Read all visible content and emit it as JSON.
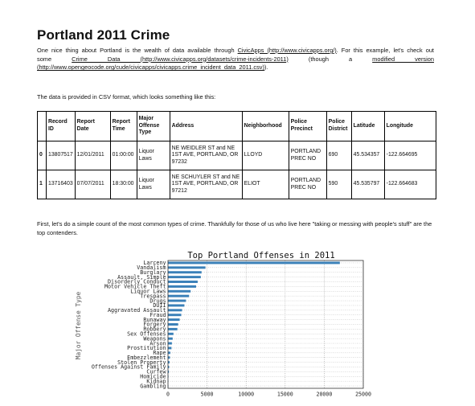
{
  "title": "Portland 2011 Crime",
  "intro": {
    "line1_prefix": "One nice thing about Portland is the wealth of data available through ",
    "line1_link": "CivicApps (http://www.civicapps.org/)",
    "line1_suffix": ". For this example, let's check out",
    "w_some": "some",
    "w_crime_link": "Crime Data (http://www.civicapps.org/datasets/crime-incidents-2011)",
    "w_though": "(though",
    "w_a": "a",
    "w_modified_link": "modified version",
    "line3_link": "(http://www.opengeocode.org/cude/civicapps/civicapps.crime_incident_data_2011.csv)",
    "line3_suffix": ")."
  },
  "csv_intro": "The data is provided in CSV format, which looks something like this:",
  "table": {
    "headers": [
      "",
      "Record ID",
      "Report Date",
      "Report Time",
      "Major Offense Type",
      "Address",
      "Neighborhood",
      "Police Precinct",
      "Police District",
      "Latitude",
      "Longitude"
    ],
    "rows": [
      [
        "0",
        "13807517",
        "12/01/2011",
        "01:00:00",
        "Liquor Laws",
        "NE WEIDLER ST and NE 1ST AVE, PORTLAND, OR 97232",
        "LLOYD",
        "PORTLAND PREC NO",
        "690",
        "45.534357",
        "-122.664695"
      ],
      [
        "1",
        "13716403",
        "07/07/2011",
        "18:30:00",
        "Liquor Laws",
        "NE SCHUYLER ST and NE 1ST AVE, PORTLAND, OR 97212",
        "ELIOT",
        "PORTLAND PREC NO",
        "590",
        "45.535797",
        "-122.664683"
      ]
    ]
  },
  "count_intro": "First, let's do a simple count of the most common types of crime. Thankfully for those of us who live here \"taking or messing with people's stuff\" are the top contenders.",
  "chart_data": {
    "type": "bar",
    "orientation": "horizontal",
    "title": "Top Portland Offenses in 2011",
    "ylabel": "Major Offense Type",
    "xlabel": "",
    "categories": [
      "Larceny",
      "Vandalism",
      "Burglary",
      "Assault, Simple",
      "Disorderly Conduct",
      "Motor Vehicle Theft",
      "Liquor Laws",
      "Trespass",
      "Drugs",
      "DUII",
      "Aggravated Assault",
      "Fraud",
      "Runaway",
      "Forgery",
      "Robbery",
      "Sex Offenses",
      "Weapons",
      "Arson",
      "Prostitution",
      "Rape",
      "Embezzlement",
      "Stolen Property",
      "Offenses Against Family",
      "Curfew",
      "Homicide",
      "Kidnap",
      "Gambling"
    ],
    "values": [
      22000,
      4800,
      4300,
      4200,
      3800,
      3600,
      2900,
      2700,
      2300,
      2100,
      1800,
      1700,
      1500,
      1300,
      1200,
      700,
      600,
      500,
      450,
      300,
      250,
      200,
      150,
      120,
      60,
      40,
      20
    ],
    "xticks": [
      0,
      5000,
      10000,
      15000,
      20000,
      25000
    ],
    "xlim": [
      0,
      25000
    ],
    "grid": true,
    "bar_color": "#3a80b8"
  }
}
